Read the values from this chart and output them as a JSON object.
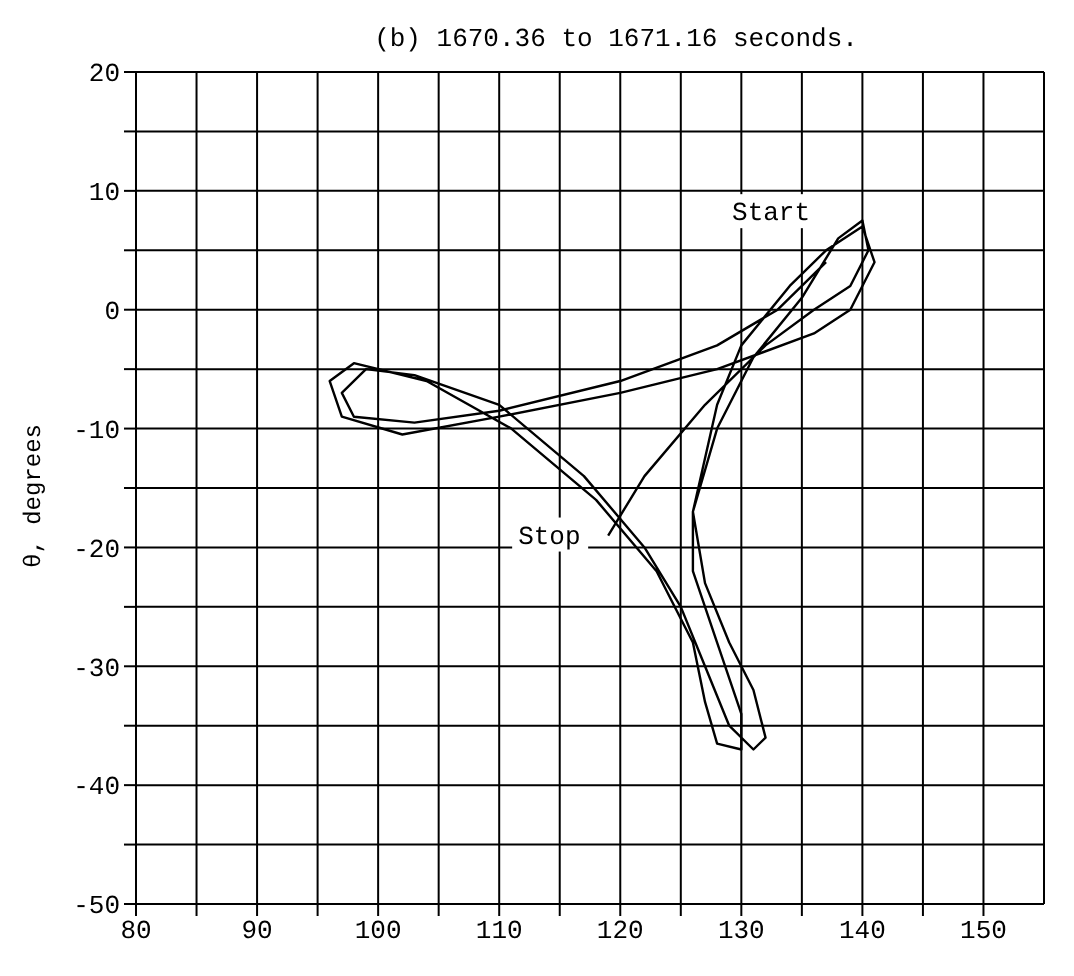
{
  "chart_data": {
    "type": "line",
    "title": "(b) 1670.36 to 1671.16 seconds.",
    "ylabel": "θ, degrees",
    "xlim": [
      80,
      155
    ],
    "ylim": [
      -50,
      20
    ],
    "xticks": [
      80,
      {
        "value": 85,
        "label": null
      },
      90,
      {
        "value": 95,
        "label": null
      },
      100,
      {
        "value": 105,
        "label": null
      },
      110,
      {
        "value": 115,
        "label": null
      },
      120,
      {
        "value": 125,
        "label": null
      },
      130,
      {
        "value": 135,
        "label": null
      },
      140,
      {
        "value": 145,
        "label": null
      },
      150
    ],
    "yticks": [
      -50,
      {
        "value": -45,
        "label": null
      },
      -40,
      {
        "value": -35,
        "label": null
      },
      -30,
      {
        "value": -25,
        "label": null
      },
      -20,
      {
        "value": -15,
        "label": null
      },
      -10,
      {
        "value": -5,
        "label": null
      },
      0,
      {
        "value": 5,
        "label": null
      },
      10,
      {
        "value": 15,
        "label": null
      },
      20
    ],
    "grid": true,
    "marker": "none",
    "line_style": "solid",
    "annotations": [
      {
        "text": "Start",
        "x": 137,
        "y": 4
      },
      {
        "text": "Stop",
        "x": 119,
        "y": -19
      }
    ],
    "series": [
      {
        "color": "#000000",
        "x": [
          137,
          133,
          128,
          120,
          110,
          103,
          98,
          97,
          99,
          103,
          110,
          117,
          122,
          125,
          127,
          129,
          131,
          132,
          131,
          129,
          127,
          126,
          128,
          130,
          134,
          137,
          140,
          141,
          139,
          136,
          128,
          120,
          110,
          102,
          97,
          96,
          98,
          104,
          111,
          118,
          123,
          126,
          127,
          128,
          130,
          130,
          128,
          126,
          126,
          128,
          131,
          135,
          138,
          140,
          140.5,
          139,
          136,
          132,
          127,
          122,
          119
        ],
        "values": [
          4,
          0,
          -3,
          -6,
          -8.5,
          -9.5,
          -9,
          -7,
          -5,
          -5.5,
          -8,
          -14,
          -20,
          -25,
          -30,
          -35,
          -37,
          -36,
          -32,
          -28,
          -23,
          -17,
          -8,
          -3,
          2,
          5,
          7,
          4,
          0,
          -2,
          -5,
          -7,
          -9,
          -10.5,
          -9,
          -6,
          -4.5,
          -6,
          -10,
          -16,
          -22,
          -28,
          -33,
          -36.5,
          -37,
          -34,
          -28,
          -22,
          -17,
          -10,
          -4,
          1,
          6,
          7.5,
          5,
          2,
          0,
          -3,
          -8,
          -14,
          -19
        ]
      }
    ]
  }
}
